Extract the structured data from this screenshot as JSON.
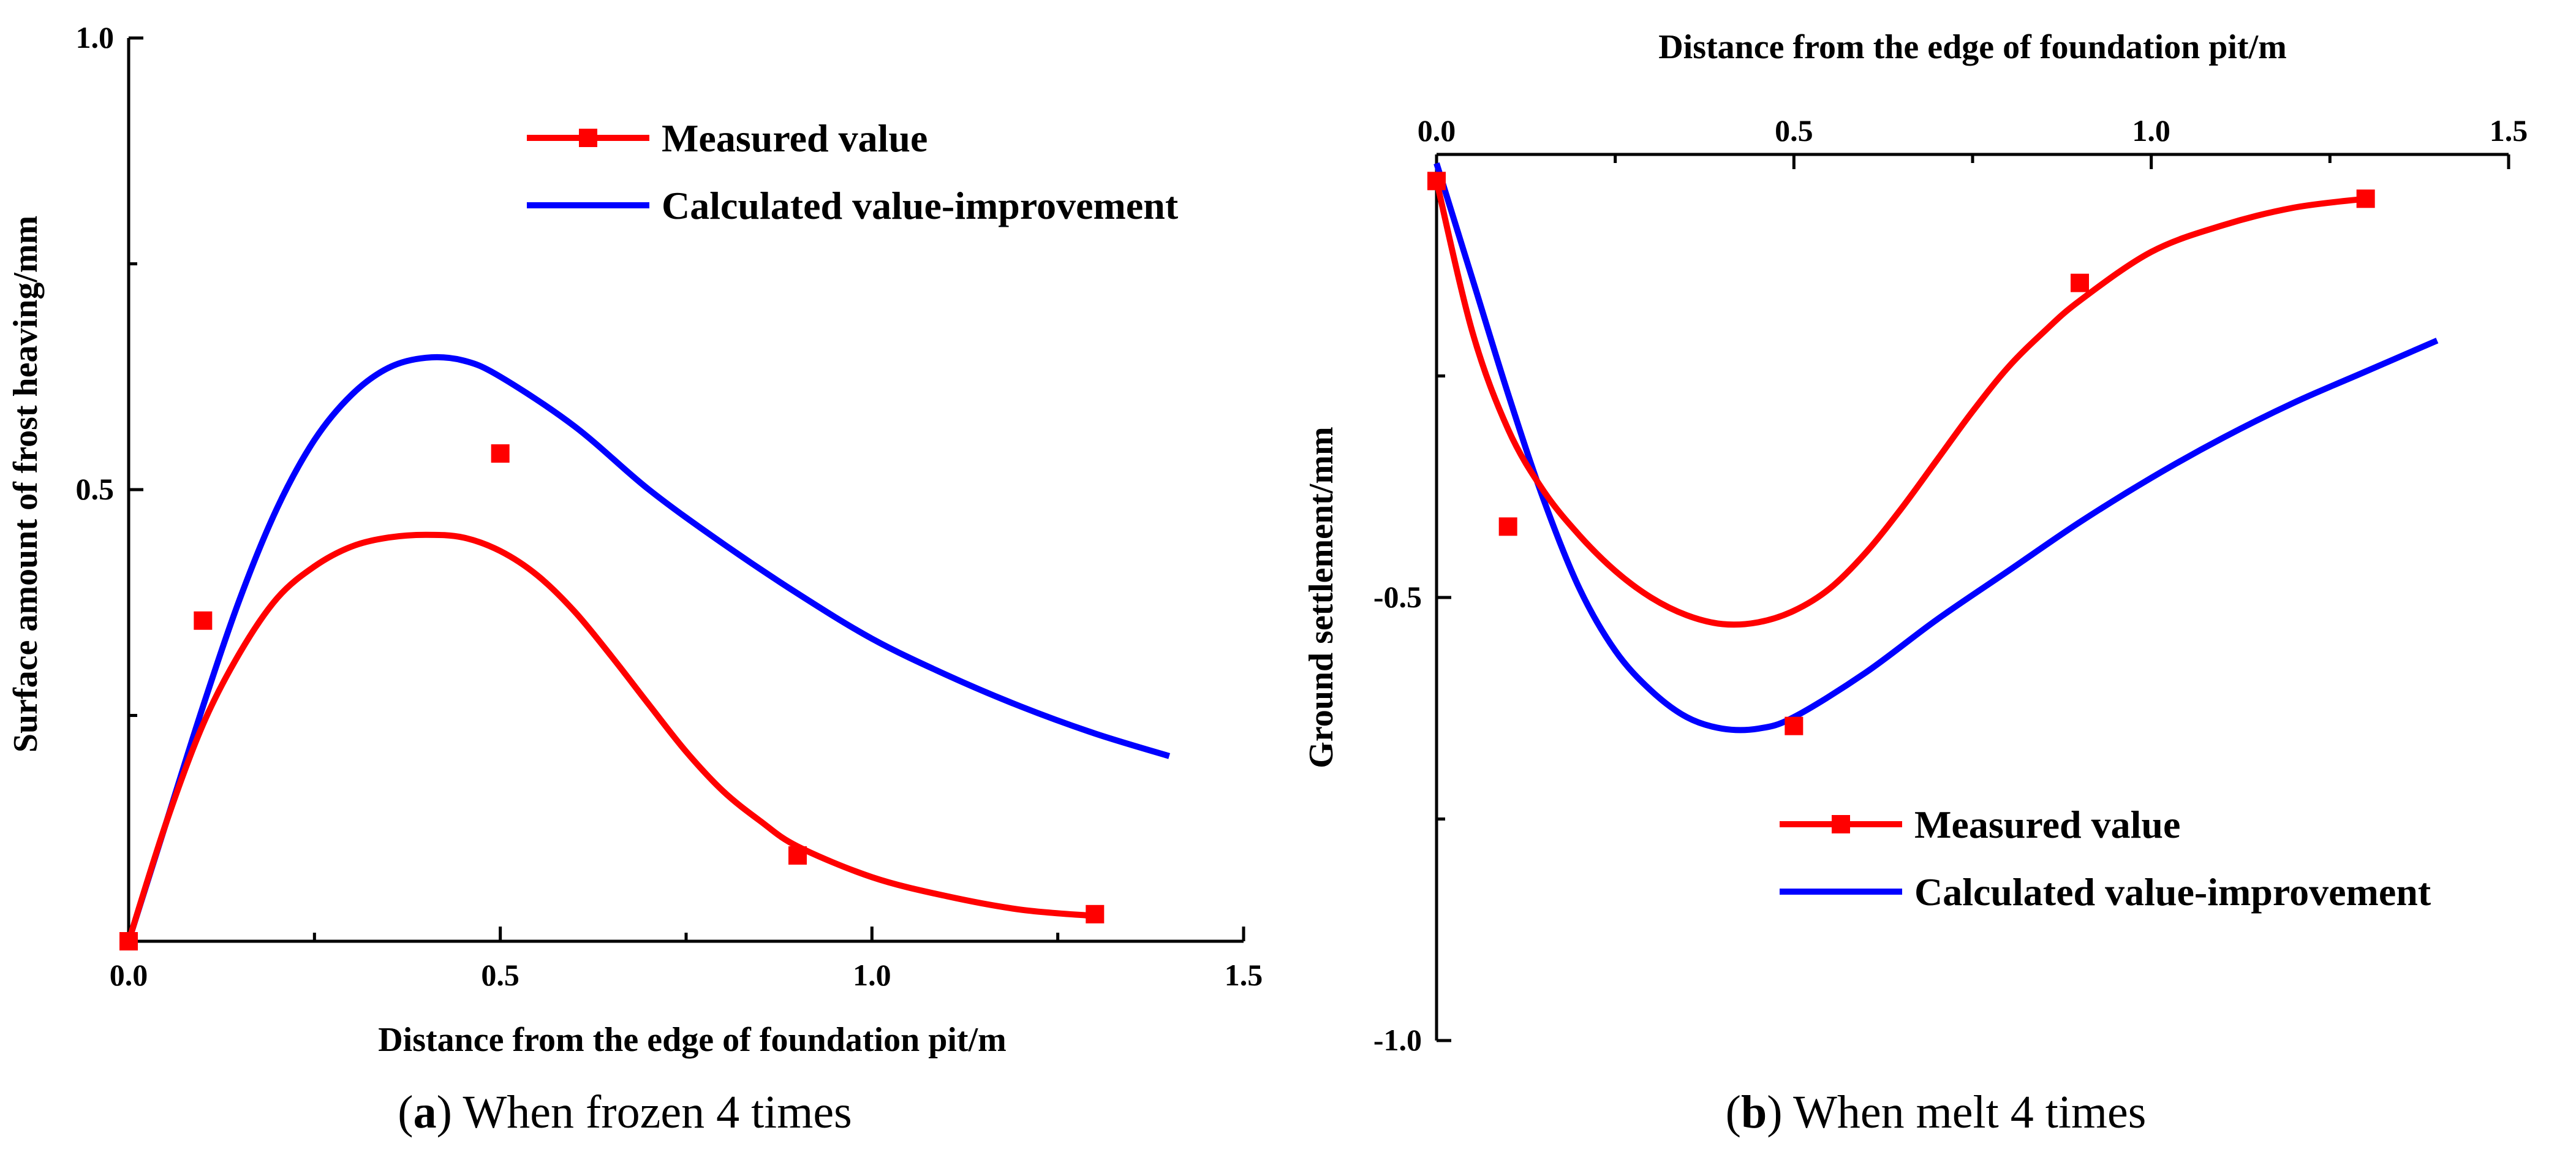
{
  "colors": {
    "measured": "#ff0000",
    "calculated": "#0000ff",
    "axis": "#000000"
  },
  "chart_data": [
    {
      "id": "a",
      "type": "line",
      "caption_letter": "a",
      "caption_text": "When frozen 4 times",
      "xlabel": "Distance from the edge of foundation pit/m",
      "ylabel": "Surface amount of frost heaving/mm",
      "xlim": [
        0,
        1.5
      ],
      "ylim": [
        0,
        1.0
      ],
      "xticks": [
        "0.0",
        "0.5",
        "1.0",
        "1.5"
      ],
      "yticks": [
        "0.5",
        "1.0"
      ],
      "x_axis_position": "bottom",
      "legend_position": "top-right",
      "measured": {
        "name": "Measured value",
        "points": [
          [
            0.0,
            0.0
          ],
          [
            0.1,
            0.355
          ],
          [
            0.5,
            0.54
          ],
          [
            0.9,
            0.095
          ],
          [
            1.3,
            0.03
          ]
        ],
        "fit": [
          [
            0.0,
            0.0
          ],
          [
            0.05,
            0.13
          ],
          [
            0.1,
            0.24
          ],
          [
            0.15,
            0.32
          ],
          [
            0.2,
            0.38
          ],
          [
            0.25,
            0.415
          ],
          [
            0.3,
            0.437
          ],
          [
            0.35,
            0.447
          ],
          [
            0.4,
            0.45
          ],
          [
            0.45,
            0.447
          ],
          [
            0.5,
            0.432
          ],
          [
            0.55,
            0.405
          ],
          [
            0.6,
            0.365
          ],
          [
            0.65,
            0.315
          ],
          [
            0.7,
            0.262
          ],
          [
            0.75,
            0.21
          ],
          [
            0.8,
            0.166
          ],
          [
            0.85,
            0.133
          ],
          [
            0.9,
            0.105
          ],
          [
            1.0,
            0.071
          ],
          [
            1.1,
            0.05
          ],
          [
            1.2,
            0.035
          ],
          [
            1.3,
            0.028
          ]
        ]
      },
      "calculated": {
        "name": "Calculated value-improvement",
        "fit": [
          [
            0.0,
            0.0
          ],
          [
            0.05,
            0.13
          ],
          [
            0.1,
            0.26
          ],
          [
            0.15,
            0.38
          ],
          [
            0.2,
            0.48
          ],
          [
            0.25,
            0.555
          ],
          [
            0.3,
            0.605
          ],
          [
            0.35,
            0.635
          ],
          [
            0.4,
            0.646
          ],
          [
            0.45,
            0.643
          ],
          [
            0.5,
            0.625
          ],
          [
            0.6,
            0.57
          ],
          [
            0.7,
            0.5
          ],
          [
            0.8,
            0.44
          ],
          [
            0.9,
            0.385
          ],
          [
            1.0,
            0.335
          ],
          [
            1.1,
            0.295
          ],
          [
            1.2,
            0.26
          ],
          [
            1.3,
            0.23
          ],
          [
            1.4,
            0.205
          ]
        ]
      }
    },
    {
      "id": "b",
      "type": "line",
      "caption_letter": "b",
      "caption_text": "When melt 4 times",
      "xlabel": "Distance from the edge of foundation pit/m",
      "ylabel": "Ground settlement/mm",
      "xlim": [
        0,
        1.5
      ],
      "ylim": [
        -1.0,
        0
      ],
      "xticks": [
        "0.0",
        "0.5",
        "1.0",
        "1.5"
      ],
      "yticks": [
        "-0.5",
        "-1.0"
      ],
      "x_axis_position": "top",
      "legend_position": "bottom-right",
      "measured": {
        "name": "Measured value",
        "points": [
          [
            0.0,
            -0.03
          ],
          [
            0.1,
            -0.42
          ],
          [
            0.5,
            -0.645
          ],
          [
            0.9,
            -0.145
          ],
          [
            1.3,
            -0.05
          ]
        ],
        "fit": [
          [
            0.0,
            -0.03
          ],
          [
            0.05,
            -0.2
          ],
          [
            0.1,
            -0.31
          ],
          [
            0.15,
            -0.38
          ],
          [
            0.2,
            -0.43
          ],
          [
            0.25,
            -0.47
          ],
          [
            0.3,
            -0.5
          ],
          [
            0.35,
            -0.52
          ],
          [
            0.4,
            -0.53
          ],
          [
            0.45,
            -0.528
          ],
          [
            0.5,
            -0.515
          ],
          [
            0.55,
            -0.49
          ],
          [
            0.6,
            -0.45
          ],
          [
            0.65,
            -0.4
          ],
          [
            0.7,
            -0.345
          ],
          [
            0.75,
            -0.29
          ],
          [
            0.8,
            -0.24
          ],
          [
            0.85,
            -0.2
          ],
          [
            0.9,
            -0.165
          ],
          [
            1.0,
            -0.11
          ],
          [
            1.1,
            -0.08
          ],
          [
            1.2,
            -0.06
          ],
          [
            1.3,
            -0.05
          ]
        ]
      },
      "calculated": {
        "name": "Calculated value-improvement",
        "fit": [
          [
            0.0,
            -0.01
          ],
          [
            0.05,
            -0.14
          ],
          [
            0.1,
            -0.27
          ],
          [
            0.15,
            -0.39
          ],
          [
            0.2,
            -0.49
          ],
          [
            0.25,
            -0.56
          ],
          [
            0.3,
            -0.605
          ],
          [
            0.35,
            -0.635
          ],
          [
            0.4,
            -0.648
          ],
          [
            0.45,
            -0.648
          ],
          [
            0.5,
            -0.635
          ],
          [
            0.6,
            -0.585
          ],
          [
            0.7,
            -0.525
          ],
          [
            0.8,
            -0.47
          ],
          [
            0.9,
            -0.415
          ],
          [
            1.0,
            -0.365
          ],
          [
            1.1,
            -0.32
          ],
          [
            1.2,
            -0.28
          ],
          [
            1.3,
            -0.245
          ],
          [
            1.4,
            -0.21
          ]
        ]
      }
    }
  ]
}
